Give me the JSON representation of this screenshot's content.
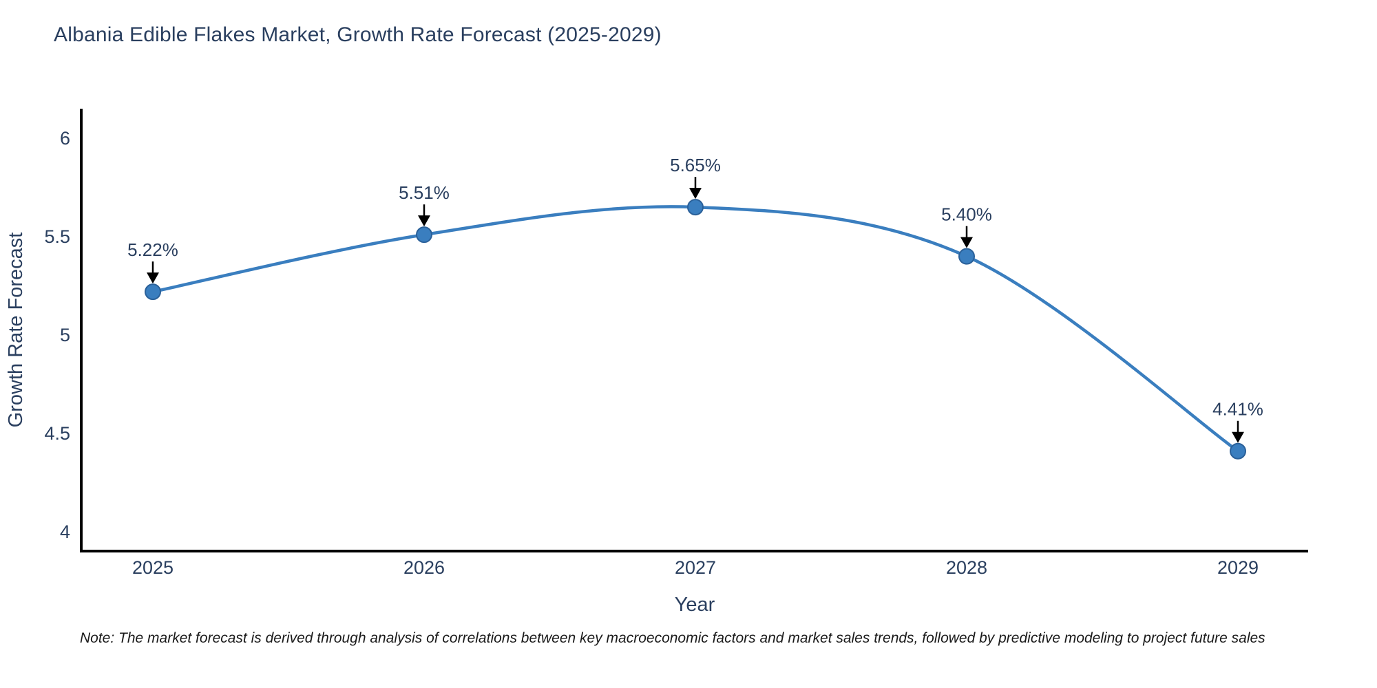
{
  "chart_data": {
    "type": "line",
    "title": "Albania Edible Flakes Market, Growth Rate Forecast (2025-2029)",
    "x": [
      2025,
      2026,
      2027,
      2028,
      2029
    ],
    "values": [
      5.22,
      5.51,
      5.65,
      5.4,
      4.41
    ],
    "point_labels": [
      "5.22%",
      "5.51%",
      "5.65%",
      "5.40%",
      "4.41%"
    ],
    "xtick_labels": [
      "2025",
      "2026",
      "2027",
      "2028",
      "2029"
    ],
    "yticks": [
      4,
      4.5,
      5,
      5.5,
      6
    ],
    "ytick_labels": [
      "4",
      "4.5",
      "5",
      "5.5",
      "6"
    ],
    "xlabel": "Year",
    "ylabel": "Growth Rate Forecast",
    "ylim": [
      3.9,
      6.15
    ],
    "line_shape": "spline",
    "grid": false,
    "legend": "none",
    "colors": {
      "line": "#3a7ebf",
      "marker_fill": "#3a7ebf",
      "marker_edge": "#2a6099",
      "axis_line": "#000000",
      "tick_text": "#2a3f5f",
      "annotation_text": "#2a3f5f",
      "annotation_arrow": "#000000"
    }
  },
  "note": "Note: The market forecast is derived through analysis of correlations between key macroeconomic factors and market sales trends, followed by predictive modeling to project future sales"
}
